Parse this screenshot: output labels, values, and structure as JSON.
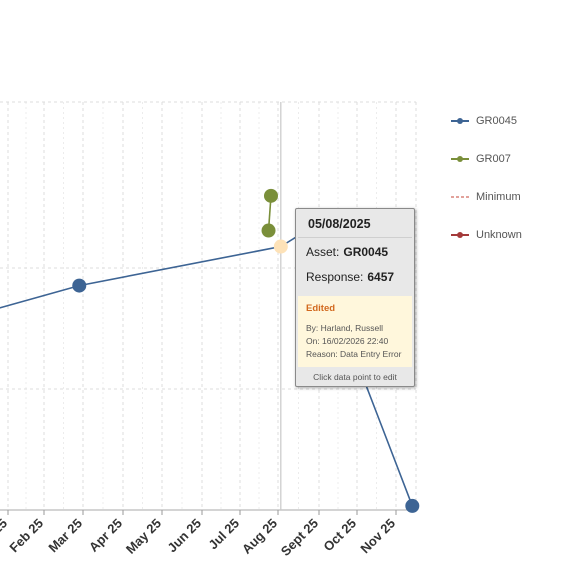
{
  "chart_data": {
    "type": "line",
    "x_tick_labels": [
      "25",
      "Feb 25",
      "Mar 25",
      "Apr 25",
      "May 25",
      "Jun 25",
      "Jul 25",
      "Aug 25",
      "Sept 25",
      "Oct 25",
      "Nov 25"
    ],
    "xlim": [
      "2024-12-26",
      "2025-11-23"
    ],
    "ylim": [
      0,
      10000
    ],
    "grid": true,
    "legend_position": "right",
    "series": [
      {
        "name": "GR0045",
        "color": "#3d6494",
        "points": [
          {
            "x": "2024-12-01",
            "y": 4800
          },
          {
            "x": "2025-02-22",
            "y": 5500
          },
          {
            "x": "2025-08-05",
            "y": 6457
          },
          {
            "x": "2025-08-26",
            "y": 6850
          },
          {
            "x": "2025-11-20",
            "y": 100
          }
        ]
      },
      {
        "name": "GR007",
        "color": "#7a8f3a",
        "points": [
          {
            "x": "2025-07-26",
            "y": 6850
          },
          {
            "x": "2025-07-28",
            "y": 7700
          }
        ]
      },
      {
        "name": "Minimum",
        "color": "#d9847a",
        "points": []
      },
      {
        "name": "Unknown",
        "color": "#a43a3a",
        "points": []
      }
    ],
    "highlight": {
      "series": "GR0045",
      "x": "2025-08-05",
      "y": 6457
    }
  },
  "legend": [
    {
      "label": "GR0045",
      "color": "#3d6494",
      "style": "line-dot"
    },
    {
      "label": "GR007",
      "color": "#7a8f3a",
      "style": "line-dot"
    },
    {
      "label": "Minimum",
      "color": "#d9847a",
      "style": "dashed"
    },
    {
      "label": "Unknown",
      "color": "#a43a3a",
      "style": "line-dot"
    }
  ],
  "tooltip": {
    "date": "05/08/2025",
    "asset_label": "Asset:",
    "asset_value": "GR0045",
    "response_label": "Response:",
    "response_value": "6457",
    "edit_title": "Edited",
    "edit_by": "By: Harland, Russell",
    "edit_on": "On: 16/02/2026 22:40",
    "edit_reason": "Reason: Data Entry Error",
    "footer": "Click data point to edit"
  }
}
